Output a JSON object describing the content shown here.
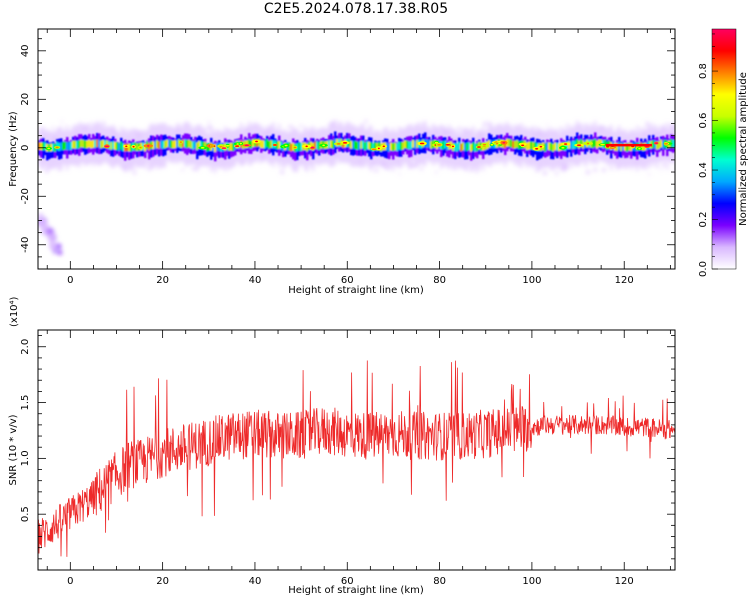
{
  "figure": {
    "title": "C2E5.2024.078.17.38.R05"
  },
  "colors": {
    "snr_line": "#ee2a2a",
    "colormap": [
      "#ffffff",
      "#d9b8ff",
      "#7a00ff",
      "#0000ff",
      "#00a8ff",
      "#00ffd0",
      "#00ff00",
      "#c8ff00",
      "#ffff00",
      "#ff8000",
      "#ff0000",
      "#ff0060"
    ]
  },
  "chart_data": [
    {
      "type": "heatmap",
      "title": "C2E5.2024.078.17.38.R05",
      "xlabel": "Height of straight line (km)",
      "ylabel": "Frequency (Hz)",
      "xlim": [
        -7,
        131
      ],
      "ylim": [
        -50,
        49
      ],
      "xticks": [
        0,
        20,
        40,
        60,
        80,
        100,
        120
      ],
      "yticks": [
        -40,
        -20,
        0,
        20,
        40
      ],
      "colorbar": {
        "label": "Normalized spectral amplitude",
        "range": [
          0,
          0.97
        ],
        "ticks": [
          0.0,
          0.2,
          0.4,
          0.6,
          0.8
        ]
      },
      "band": {
        "center_hz": 0.5,
        "half_width_hz": 5,
        "peak_frequency_hz": 1
      },
      "secondary_feature": {
        "x_km": [
          -7,
          -2
        ],
        "y_hz": [
          -44,
          -28
        ]
      }
    },
    {
      "type": "line",
      "xlabel": "Height of straight line (km)",
      "ylabel": "SNR (10 * v/v)",
      "multiplier": "(x10⁴)",
      "xlim": [
        -7,
        131
      ],
      "ylim": [
        0,
        2.15
      ],
      "xticks": [
        0,
        20,
        40,
        60,
        80,
        100,
        120
      ],
      "yticks": [
        0.5,
        1.0,
        1.5,
        2.0
      ],
      "series": [
        {
          "x": [
            -7,
            -5,
            0,
            5,
            10,
            13,
            15,
            20,
            25,
            30,
            35,
            40,
            45,
            50,
            55,
            60,
            65,
            70,
            75,
            80,
            85,
            90,
            95,
            100,
            103,
            105,
            110,
            115,
            120,
            125,
            131
          ],
          "y": [
            0.3,
            0.35,
            0.5,
            0.65,
            0.85,
            0.95,
            0.95,
            1.05,
            1.1,
            1.15,
            1.2,
            1.22,
            1.2,
            1.2,
            1.25,
            1.22,
            1.2,
            1.22,
            1.2,
            1.2,
            1.2,
            1.22,
            1.25,
            1.28,
            1.3,
            1.3,
            1.3,
            1.3,
            1.28,
            1.28,
            1.25
          ]
        }
      ]
    }
  ]
}
